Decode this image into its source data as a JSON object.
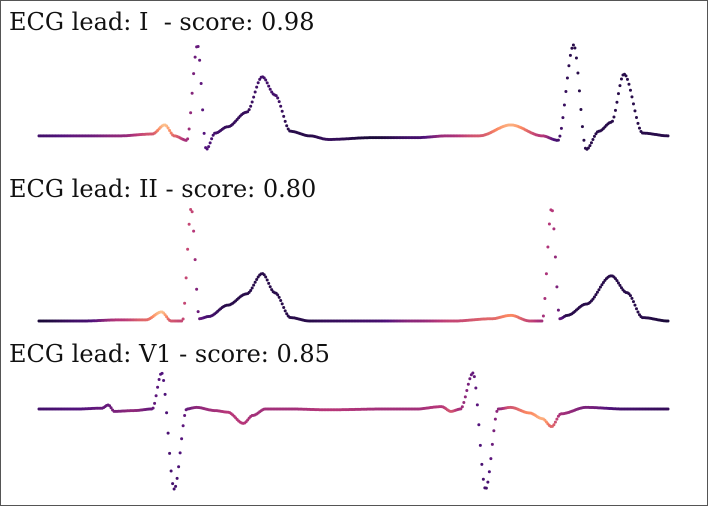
{
  "leads": [
    {
      "title": "ECG lead: I  - score: 0.98"
    },
    {
      "title": "ECG lead: II - score: 0.80"
    },
    {
      "title": "ECG lead: V1 - score: 0.85"
    }
  ],
  "chart_data": [
    {
      "type": "line",
      "title": "ECG lead: I  - score: 0.98",
      "lead": "I",
      "score": 0.98,
      "x": [
        0,
        0.07,
        0.13,
        0.18,
        0.2,
        0.215,
        0.235,
        0.252,
        0.266,
        0.28,
        0.3,
        0.33,
        0.355,
        0.375,
        0.4,
        0.43,
        0.46,
        0.53,
        0.6,
        0.65,
        0.7,
        0.75,
        0.8,
        0.825,
        0.85,
        0.87,
        0.89,
        0.91,
        0.93,
        0.96,
        1.0
      ],
      "values": [
        0,
        0,
        0,
        0.02,
        0.12,
        0.0,
        -0.05,
        1.0,
        -0.15,
        0.03,
        0.1,
        0.26,
        0.65,
        0.45,
        0.05,
        0.0,
        -0.04,
        -0.02,
        -0.02,
        0.0,
        0.0,
        0.12,
        0.0,
        -0.05,
        1.0,
        -0.15,
        0.05,
        0.15,
        0.68,
        0.03,
        0.0
      ],
      "heat": [
        0.2,
        0.3,
        0.4,
        0.6,
        0.9,
        0.65,
        0.45,
        0.3,
        0.25,
        0.2,
        0.15,
        0.15,
        0.2,
        0.2,
        0.1,
        0.1,
        0.15,
        0.05,
        0.2,
        0.45,
        0.6,
        0.85,
        0.5,
        0.2,
        0.1,
        0.1,
        0.1,
        0.1,
        0.1,
        0.1,
        0.1
      ],
      "ylim": [
        -0.2,
        1.0
      ]
    },
    {
      "type": "line",
      "title": "ECG lead: II - score: 0.80",
      "lead": "II",
      "score": 0.8,
      "x": [
        0,
        0.07,
        0.13,
        0.17,
        0.195,
        0.21,
        0.228,
        0.242,
        0.255,
        0.27,
        0.3,
        0.33,
        0.355,
        0.375,
        0.4,
        0.43,
        0.46,
        0.53,
        0.6,
        0.66,
        0.72,
        0.75,
        0.78,
        0.8,
        0.815,
        0.828,
        0.84,
        0.87,
        0.91,
        0.935,
        0.96,
        1.0
      ],
      "values": [
        0,
        0,
        0.01,
        0.01,
        0.08,
        0.0,
        0.0,
        1.0,
        0.02,
        0.04,
        0.14,
        0.24,
        0.42,
        0.25,
        0.03,
        0.0,
        0.0,
        0.0,
        0.0,
        0.0,
        0.02,
        0.05,
        0.0,
        0.0,
        1.0,
        0.02,
        0.05,
        0.15,
        0.4,
        0.25,
        0.03,
        0.0
      ],
      "heat": [
        0.05,
        0.2,
        0.5,
        0.65,
        0.9,
        0.6,
        0.55,
        0.55,
        0.3,
        0.2,
        0.1,
        0.1,
        0.1,
        0.1,
        0.1,
        0.1,
        0.15,
        0.2,
        0.4,
        0.55,
        0.65,
        0.75,
        0.55,
        0.45,
        0.5,
        0.3,
        0.1,
        0.1,
        0.1,
        0.1,
        0.1,
        0.05
      ],
      "ylim": [
        0,
        1.0
      ]
    },
    {
      "type": "line",
      "title": "ECG lead: V1 - score: 0.85",
      "lead": "V1",
      "score": 0.85,
      "x": [
        0,
        0.06,
        0.1,
        0.11,
        0.12,
        0.15,
        0.18,
        0.195,
        0.215,
        0.235,
        0.25,
        0.28,
        0.3,
        0.325,
        0.34,
        0.36,
        0.4,
        0.46,
        0.55,
        0.6,
        0.64,
        0.655,
        0.67,
        0.69,
        0.71,
        0.73,
        0.75,
        0.78,
        0.8,
        0.815,
        0.83,
        0.87,
        0.93,
        1.0
      ],
      "values": [
        0,
        0,
        0.01,
        0.05,
        -0.03,
        -0.02,
        0.0,
        0.45,
        -1.0,
        0.0,
        0.02,
        -0.02,
        -0.04,
        -0.18,
        -0.08,
        0.0,
        0.0,
        -0.01,
        0.0,
        0.0,
        0.03,
        -0.03,
        0.0,
        0.45,
        -1.0,
        0.0,
        0.02,
        -0.05,
        -0.12,
        -0.22,
        -0.06,
        0.02,
        0.0,
        0.0
      ],
      "heat": [
        0.2,
        0.25,
        0.3,
        0.3,
        0.35,
        0.4,
        0.3,
        0.25,
        0.2,
        0.3,
        0.4,
        0.45,
        0.5,
        0.5,
        0.45,
        0.45,
        0.45,
        0.5,
        0.45,
        0.45,
        0.5,
        0.6,
        0.45,
        0.3,
        0.2,
        0.4,
        0.6,
        0.75,
        0.85,
        0.65,
        0.45,
        0.35,
        0.2,
        0.15
      ],
      "ylim": [
        -1.0,
        0.45
      ]
    }
  ]
}
